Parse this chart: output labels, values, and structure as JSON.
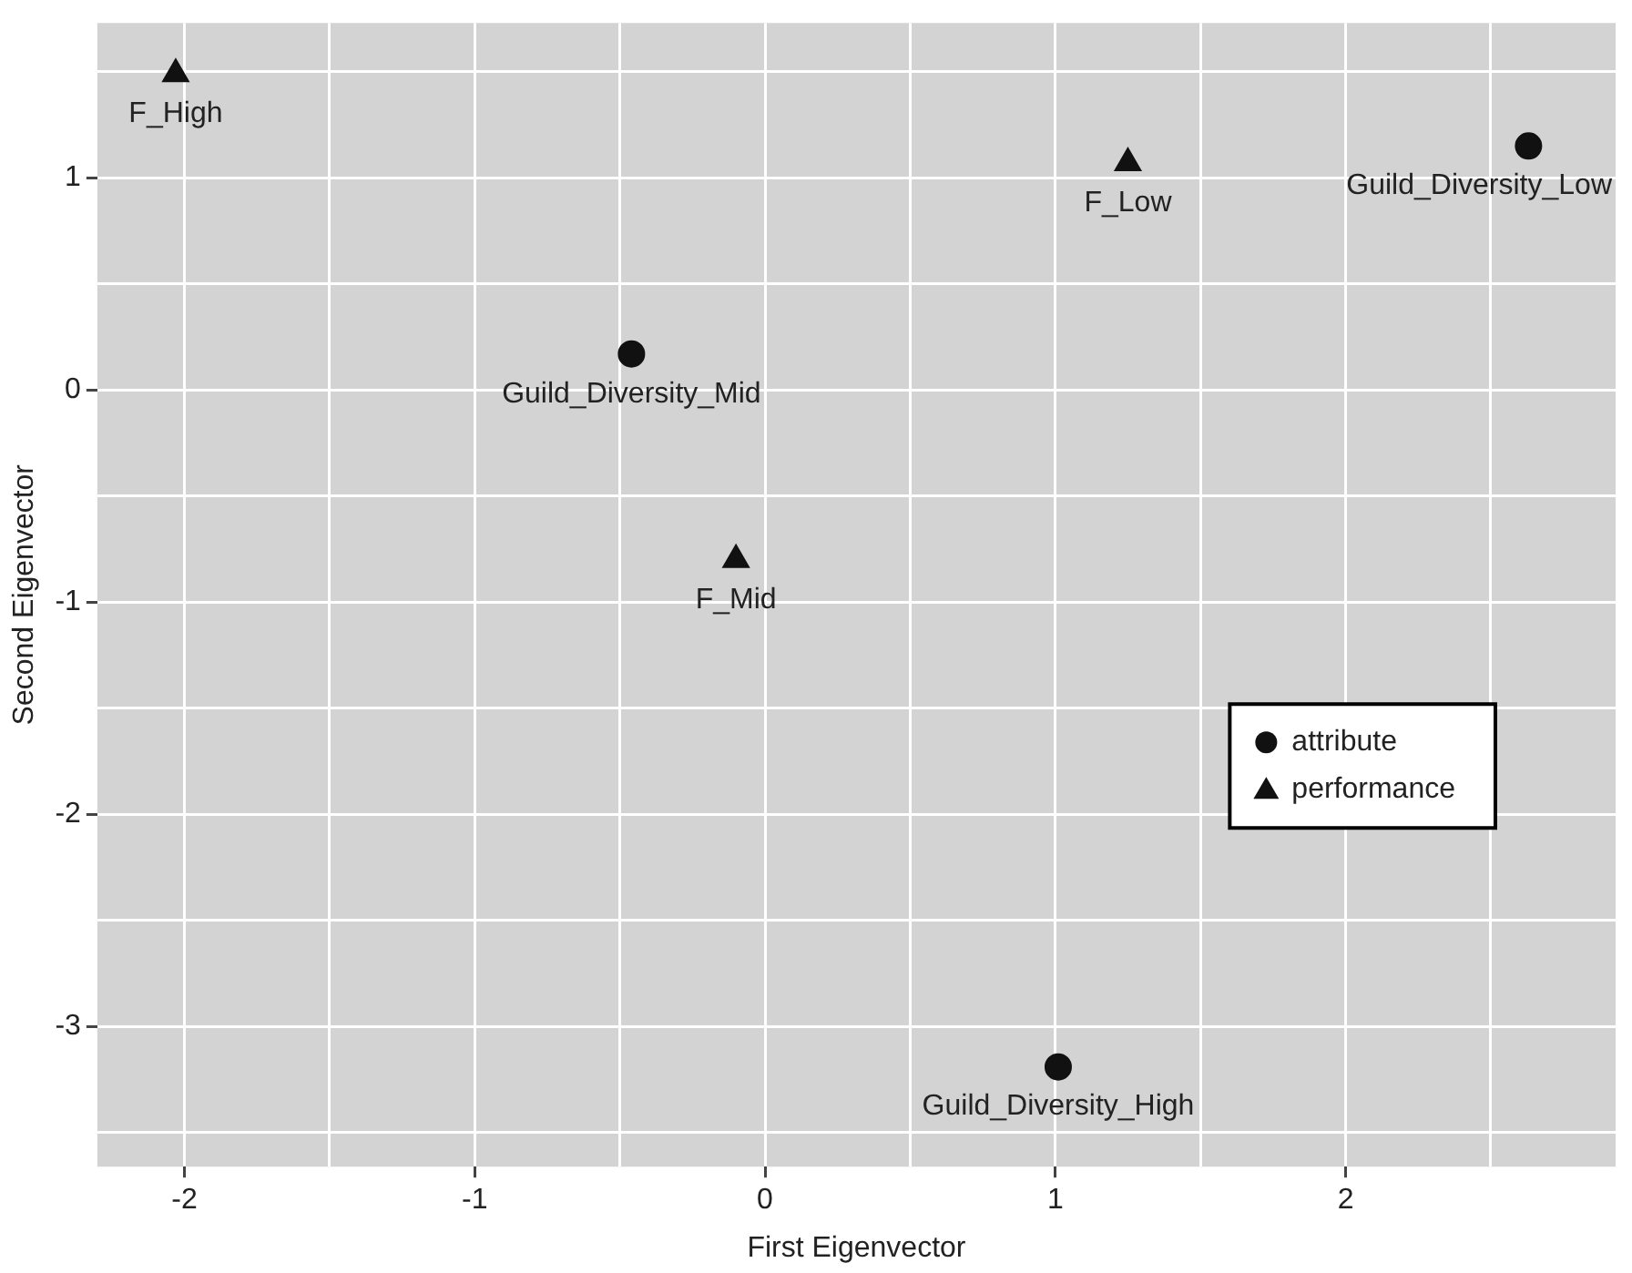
{
  "chart_data": {
    "type": "scatter",
    "xlabel": "First Eigenvector",
    "ylabel": "Second Eigenvector",
    "xlim": [
      -2.3,
      2.93
    ],
    "ylim": [
      -3.66,
      1.73
    ],
    "xticks": [
      {
        "value": -2,
        "label": "-2"
      },
      {
        "value": -1.5,
        "label": null
      },
      {
        "value": -1,
        "label": "-1"
      },
      {
        "value": -0.5,
        "label": null
      },
      0,
      {
        "value": 0.5,
        "label": null
      },
      1,
      {
        "value": 1.5,
        "label": null
      },
      2,
      {
        "value": 2.5,
        "label": null
      }
    ],
    "yticks": [
      {
        "value": -3.5,
        "label": null
      },
      {
        "value": -3,
        "label": "-3"
      },
      {
        "value": -2.5,
        "label": null
      },
      {
        "value": -2,
        "label": "-2"
      },
      {
        "value": -1.5,
        "label": null
      },
      {
        "value": -1,
        "label": "-1"
      },
      {
        "value": -0.5,
        "label": null
      },
      0,
      {
        "value": 0.5,
        "label": null
      },
      1,
      {
        "value": 1.5,
        "label": null
      }
    ],
    "grid": true,
    "legend": "right",
    "series": [
      {
        "name": "attribute",
        "color": "#111111",
        "marker": "circle",
        "x": [
          -0.46,
          2.63,
          1.01
        ],
        "values": [
          0.17,
          1.15,
          -3.19
        ]
      },
      {
        "name": "performance",
        "color": "#111111",
        "marker": "triangle",
        "x": [
          -2.03,
          1.25,
          -0.1
        ],
        "values": [
          1.49,
          1.07,
          -0.8
        ]
      }
    ],
    "annotations": [
      {
        "text": "Guild_Diversity_Mid",
        "x": -0.46,
        "y": 0.17
      },
      {
        "text": "Guild_Diversity_Low",
        "x": 2.63,
        "y": 1.15
      },
      {
        "text": "Guild_Diversity_High",
        "x": 1.01,
        "y": -3.19
      },
      {
        "text": "F_High",
        "x": -2.03,
        "y": 1.49
      },
      {
        "text": "F_Low",
        "x": 1.25,
        "y": 1.07
      },
      {
        "text": "F_Mid",
        "x": -0.1,
        "y": -0.8
      }
    ]
  }
}
